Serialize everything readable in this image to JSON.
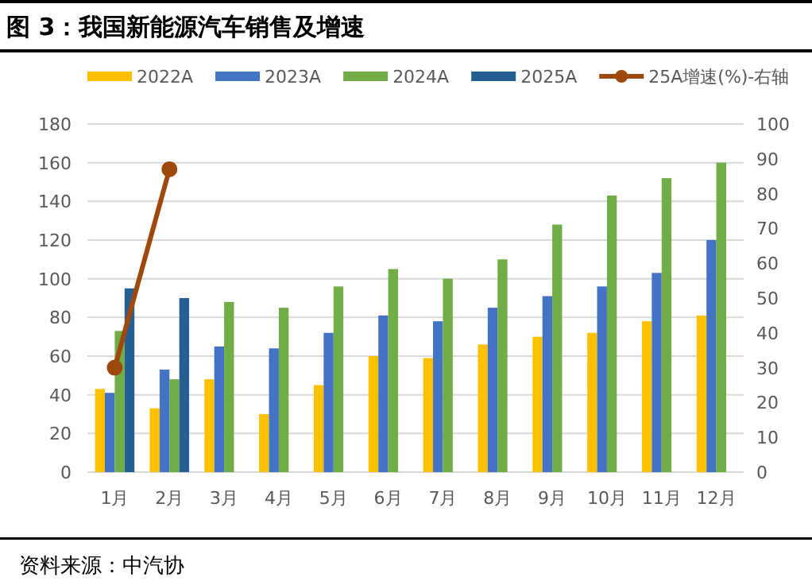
{
  "chart_data": {
    "type": "bar",
    "title": "图 3：我国新能源汽车销售及增速",
    "categories": [
      "1月",
      "2月",
      "3月",
      "4月",
      "5月",
      "6月",
      "7月",
      "8月",
      "9月",
      "10月",
      "11月",
      "12月"
    ],
    "series": [
      {
        "name": "2022A",
        "color": "#ffc000",
        "values": [
          43,
          33,
          48,
          30,
          45,
          60,
          59,
          66,
          70,
          72,
          78,
          81
        ]
      },
      {
        "name": "2023A",
        "color": "#4472c4",
        "values": [
          41,
          53,
          65,
          64,
          72,
          81,
          78,
          85,
          91,
          96,
          103,
          120
        ]
      },
      {
        "name": "2024A",
        "color": "#70ad47",
        "values": [
          73,
          48,
          88,
          85,
          96,
          105,
          100,
          110,
          128,
          143,
          152,
          160
        ]
      },
      {
        "name": "2025A",
        "color": "#255e91",
        "values": [
          95,
          90,
          null,
          null,
          null,
          null,
          null,
          null,
          null,
          null,
          null,
          null
        ]
      },
      {
        "name": "25A增速(%)-右轴",
        "type": "line",
        "axis": "y2",
        "marker": "circle",
        "color": "#9e480e",
        "values": [
          30,
          87,
          null,
          null,
          null,
          null,
          null,
          null,
          null,
          null,
          null,
          null
        ]
      }
    ],
    "ylim": [
      0,
      180
    ],
    "yticks": [
      0,
      20,
      40,
      60,
      80,
      100,
      120,
      140,
      160,
      180
    ],
    "y2lim": [
      0,
      100
    ],
    "y2ticks": [
      0,
      10,
      20,
      30,
      40,
      50,
      60,
      70,
      80,
      90,
      100
    ],
    "grid": "y",
    "legend": "top",
    "annotations": [
      "资料来源：中汽协"
    ]
  }
}
